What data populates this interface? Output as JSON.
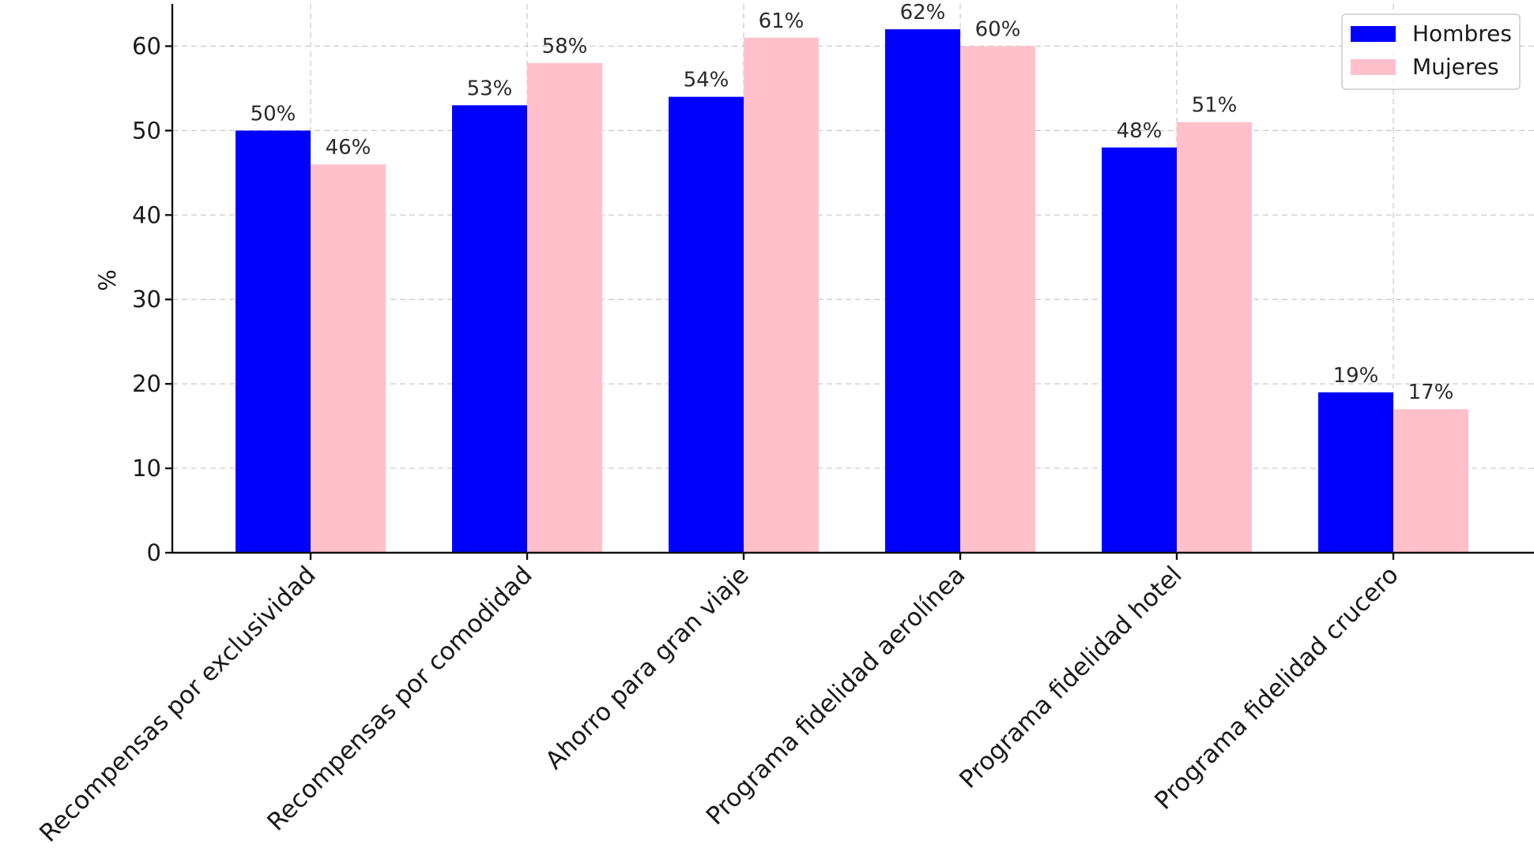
{
  "chart_data": {
    "type": "bar",
    "title": "",
    "xlabel": "",
    "ylabel": "%",
    "ylim": [
      0,
      65
    ],
    "yticks": [
      0,
      10,
      20,
      30,
      40,
      50,
      60
    ],
    "grid": true,
    "legend_position": "top-right",
    "value_suffix": "%",
    "categories": [
      "Recompensas por exclusividad",
      "Recompensas por comodidad",
      "Ahorro para gran viaje",
      "Programa fidelidad aerolínea",
      "Programa fidelidad hotel",
      "Programa fidelidad crucero"
    ],
    "series": [
      {
        "name": "Hombres",
        "color": "#0000ff",
        "values": [
          50,
          53,
          54,
          62,
          48,
          19
        ]
      },
      {
        "name": "Mujeres",
        "color": "#ffc0cb",
        "values": [
          46,
          58,
          61,
          60,
          51,
          17
        ]
      }
    ]
  }
}
